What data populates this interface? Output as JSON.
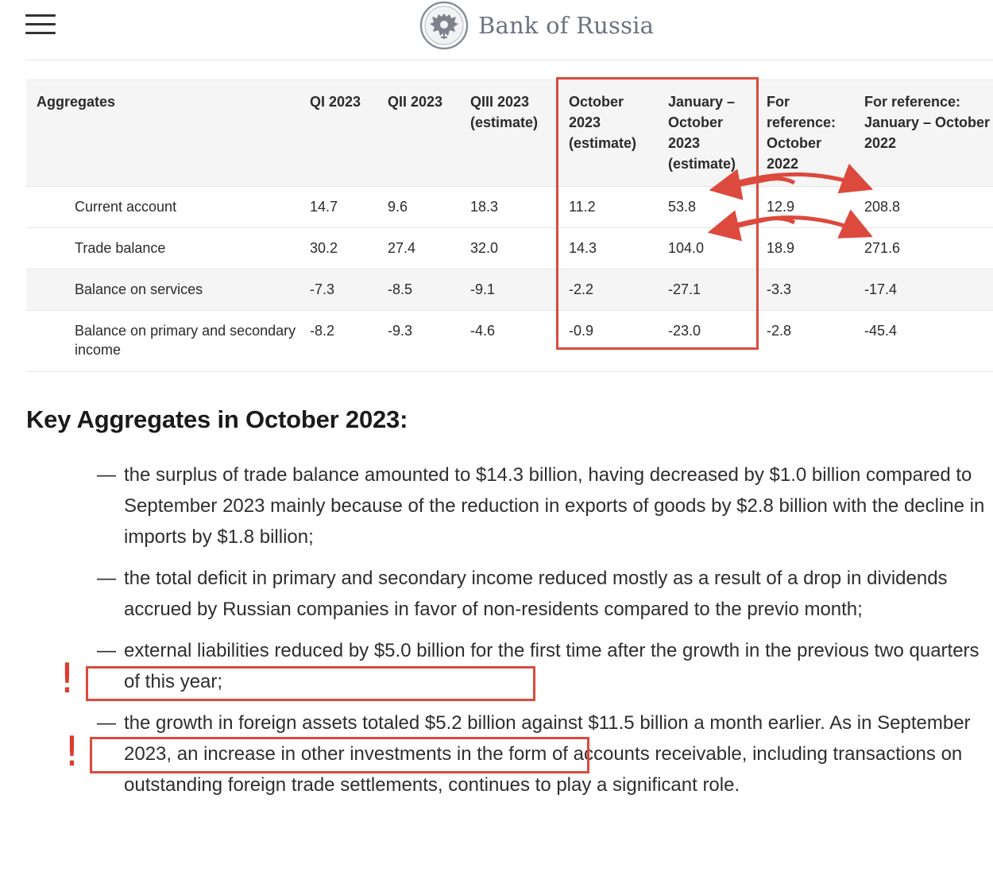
{
  "header": {
    "brand": "Bank of Russia",
    "menu_icon": "hamburger-menu-icon",
    "emblem_icon": "double-headed-eagle-emblem-icon"
  },
  "table": {
    "columns": [
      "Aggregates",
      "QI 2023",
      "QII 2023",
      "QIII 2023 (estimate)",
      "October 2023 (estimate)",
      "January – October 2023 (estimate)",
      "For reference: October 2022",
      "For reference: January – October 2022"
    ],
    "rows": [
      {
        "label": "Current account",
        "values": [
          "14.7",
          "9.6",
          "18.3",
          "11.2",
          "53.8",
          "12.9",
          "208.8"
        ]
      },
      {
        "label": "Trade balance",
        "values": [
          "30.2",
          "27.4",
          "32.0",
          "14.3",
          "104.0",
          "18.9",
          "271.6"
        ]
      },
      {
        "label": "Balance on services",
        "values": [
          "-7.3",
          "-8.5",
          "-9.1",
          "-2.2",
          "-27.1",
          "-3.3",
          "-17.4"
        ]
      },
      {
        "label": "Balance on primary and secondary income",
        "values": [
          "-8.2",
          "-9.3",
          "-4.6",
          "-0.9",
          "-23.0",
          "-2.8",
          "-45.4"
        ]
      }
    ]
  },
  "section": {
    "title": "Key Aggregates in October 2023:",
    "dash": "—",
    "bullets": [
      "the surplus of trade balance amounted to $14.3 billion, having decreased by $1.0 billion compared to September 2023 mainly because of the reduction in exports of goods by $2.8 billion with the decline in imports by $1.8 billion;",
      "the total deficit in primary and secondary income reduced mostly as a result of a drop in dividends accrued by Russian companies in favor of non-residents compared to the previo month;",
      "external liabilities reduced by $5.0 billion for the first time after the growth in the previous two quarters of this year;",
      "the growth in foreign assets totaled $5.2 billion against $11.5 billion a month earlier. As in September 2023, an increase in other investments in the form of accounts receivable, including transactions on outstanding foreign trade settlements, continues to play a significant role."
    ]
  },
  "annotations": {
    "exclamation": "!",
    "highlight_color": "#dc4a3d"
  }
}
